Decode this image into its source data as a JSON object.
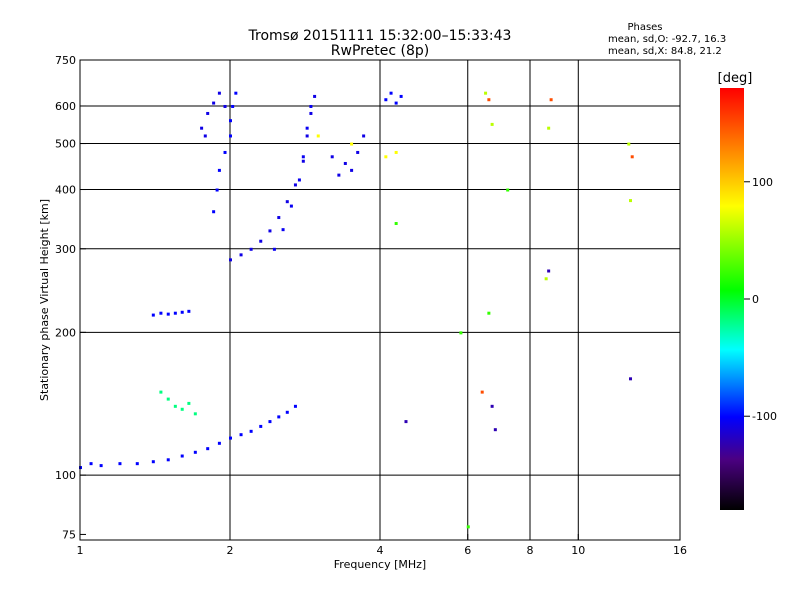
{
  "title_line1": "Tromsø 20151111 15:32:00–15:33:43",
  "title_line2": "RwPretec (8p)",
  "stats": {
    "heading": "Phases",
    "line1": "mean, sd,O: -92.7, 16.3",
    "line2": "mean, sd,X:  84.8, 21.2"
  },
  "colorbar": {
    "label": "[deg]",
    "min": -180,
    "max": 180,
    "ticks": [
      100,
      0,
      -100
    ],
    "tick_labels": [
      "100",
      "0",
      "-100"
    ]
  },
  "chart_data": {
    "type": "scatter",
    "xlabel": "Frequency [MHz]",
    "ylabel": "Stationary phase Virtual Height [km]",
    "x_scale": "log",
    "y_scale": "log",
    "xlim": [
      1,
      16
    ],
    "ylim": [
      73,
      750
    ],
    "x_ticks": [
      1,
      2,
      4,
      6,
      8,
      10,
      16
    ],
    "x_tick_labels": [
      "1",
      "2",
      "4",
      "6",
      "8",
      "10",
      "16"
    ],
    "y_ticks": [
      75,
      100,
      200,
      300,
      400,
      500,
      600,
      750
    ],
    "y_tick_labels": [
      "75",
      "100",
      "200",
      "300",
      "400",
      "500",
      "600",
      "750"
    ],
    "grid": true,
    "traces": [
      {
        "phase": -100,
        "points": [
          [
            1.0,
            104
          ],
          [
            1.05,
            106
          ],
          [
            1.1,
            105
          ],
          [
            1.2,
            106
          ],
          [
            1.3,
            106
          ],
          [
            1.4,
            107
          ],
          [
            1.5,
            108
          ],
          [
            1.6,
            110
          ],
          [
            1.7,
            112
          ],
          [
            1.8,
            114
          ],
          [
            1.9,
            117
          ],
          [
            2.0,
            120
          ],
          [
            2.1,
            122
          ],
          [
            2.2,
            124
          ],
          [
            2.3,
            127
          ],
          [
            2.4,
            130
          ],
          [
            2.5,
            133
          ],
          [
            2.6,
            136
          ],
          [
            2.7,
            140
          ]
        ]
      },
      {
        "phase": -110,
        "points": [
          [
            2.0,
            285
          ],
          [
            2.1,
            292
          ],
          [
            2.2,
            300
          ],
          [
            2.3,
            312
          ],
          [
            2.4,
            328
          ],
          [
            2.5,
            350
          ],
          [
            2.6,
            378
          ],
          [
            2.7,
            410
          ],
          [
            2.8,
            460
          ],
          [
            2.85,
            520
          ],
          [
            2.9,
            580
          ],
          [
            2.95,
            630
          ]
        ]
      },
      {
        "phase": -105,
        "points": [
          [
            2.45,
            300
          ],
          [
            2.55,
            330
          ],
          [
            2.65,
            370
          ],
          [
            2.75,
            420
          ],
          [
            2.8,
            470
          ],
          [
            2.85,
            540
          ],
          [
            2.9,
            600
          ]
        ]
      },
      {
        "phase": -100,
        "points": [
          [
            1.85,
            360
          ],
          [
            1.88,
            400
          ],
          [
            1.9,
            440
          ],
          [
            1.95,
            480
          ],
          [
            2.0,
            520
          ],
          [
            2.0,
            560
          ],
          [
            2.02,
            600
          ],
          [
            2.05,
            640
          ]
        ]
      },
      {
        "phase": -110,
        "points": [
          [
            1.75,
            540
          ],
          [
            1.8,
            580
          ],
          [
            1.85,
            610
          ],
          [
            1.9,
            640
          ],
          [
            1.95,
            600
          ],
          [
            1.78,
            520
          ]
        ]
      },
      {
        "phase": -100,
        "points": [
          [
            1.4,
            218
          ],
          [
            1.45,
            220
          ],
          [
            1.5,
            219
          ],
          [
            1.55,
            220
          ],
          [
            1.6,
            221
          ],
          [
            1.65,
            222
          ]
        ]
      },
      {
        "phase": -20,
        "points": [
          [
            1.45,
            150
          ],
          [
            1.5,
            145
          ],
          [
            1.55,
            140
          ],
          [
            1.6,
            138
          ],
          [
            1.65,
            142
          ],
          [
            1.7,
            135
          ]
        ]
      },
      {
        "phase": -110,
        "points": [
          [
            3.2,
            470
          ],
          [
            3.4,
            455
          ],
          [
            3.5,
            440
          ],
          [
            3.6,
            480
          ],
          [
            3.7,
            520
          ],
          [
            3.3,
            430
          ]
        ]
      },
      {
        "phase": -100,
        "points": [
          [
            4.1,
            620
          ],
          [
            4.2,
            640
          ],
          [
            4.3,
            610
          ],
          [
            4.4,
            630
          ]
        ]
      },
      {
        "phase": 80,
        "points": [
          [
            3.0,
            520
          ],
          [
            3.5,
            500
          ],
          [
            4.1,
            470
          ],
          [
            4.3,
            480
          ]
        ]
      },
      {
        "phase": 60,
        "points": [
          [
            6.5,
            640
          ],
          [
            6.7,
            550
          ],
          [
            8.7,
            540
          ],
          [
            8.6,
            260
          ],
          [
            12.7,
            380
          ],
          [
            12.6,
            500
          ]
        ]
      },
      {
        "phase": 150,
        "points": [
          [
            6.4,
            150
          ],
          [
            6.6,
            620
          ],
          [
            8.8,
            620
          ],
          [
            12.8,
            470
          ]
        ]
      },
      {
        "phase": -130,
        "points": [
          [
            6.7,
            140
          ],
          [
            6.8,
            125
          ],
          [
            8.7,
            270
          ],
          [
            12.7,
            160
          ],
          [
            4.5,
            130
          ]
        ]
      },
      {
        "phase": 20,
        "points": [
          [
            5.8,
            200
          ],
          [
            6.0,
            78
          ],
          [
            6.6,
            220
          ],
          [
            7.2,
            400
          ],
          [
            4.3,
            340
          ]
        ]
      }
    ]
  }
}
